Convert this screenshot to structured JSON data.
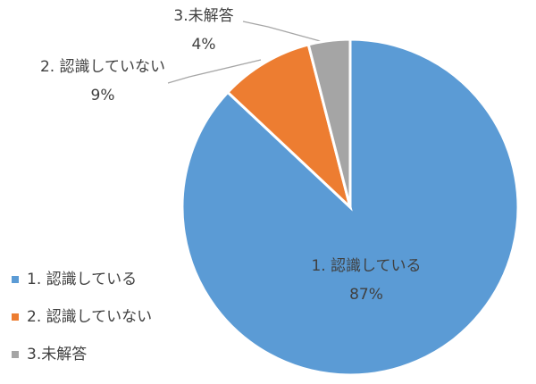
{
  "chart_data": {
    "type": "pie",
    "categories": [
      "1. 認識している",
      "2. 認識していない",
      "3.未解答"
    ],
    "values": [
      87,
      9,
      4
    ],
    "value_labels": [
      "87%",
      "9%",
      "4%"
    ],
    "colors": [
      "#5b9bd5",
      "#ed7d31",
      "#a5a5a5"
    ],
    "legend": "bottom-left"
  }
}
